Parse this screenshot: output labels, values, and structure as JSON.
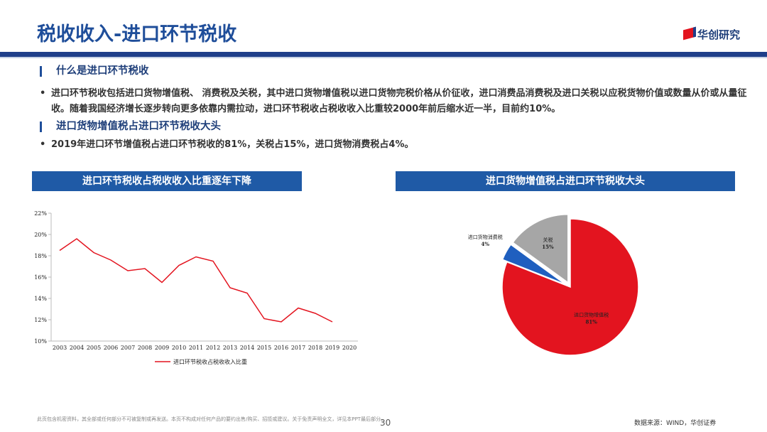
{
  "header": {
    "title": "税收收入-进口环节税收",
    "logo": "华创研究"
  },
  "sections": [
    {
      "heading": "什么是进口环节税收",
      "bullets": [
        "进口环节税收包括进口货物增值税、 消费税及关税，其中进口货物增值税以进口货物完税价格从价征收，进口消费品消费税及进口关税以应税货物价值或数量从价或从量征收。随着我国经济增长逐步转向更多依靠内需拉动，进口环节税收占税收收入比重较2000年前后缩水近一半，目前约10%。"
      ]
    },
    {
      "heading": "进口货物增值税占进口环节税收大头",
      "bullets": [
        "2019年进口环节增值税占进口环节税收的81%，关税占15%，进口货物消费税占4%。"
      ]
    }
  ],
  "chart_data": [
    {
      "type": "line",
      "title": "进口环节税收占税收收入比重逐年下降",
      "categories": [
        "2003",
        "2004",
        "2005",
        "2006",
        "2007",
        "2008",
        "2009",
        "2010",
        "2011",
        "2012",
        "2013",
        "2014",
        "2015",
        "2016",
        "2017",
        "2018",
        "2019",
        "2020"
      ],
      "series": [
        {
          "name": "进口环节税收占税收收入比重",
          "color": "#e3141f",
          "values": [
            18.5,
            19.6,
            18.3,
            17.6,
            16.6,
            16.8,
            15.5,
            17.1,
            17.9,
            17.5,
            15.0,
            14.5,
            12.1,
            11.8,
            13.1,
            12.6,
            11.8,
            null
          ]
        }
      ],
      "ylim": [
        10,
        22
      ],
      "yticks": [
        {
          "value": 10,
          "label": "10%"
        },
        {
          "value": 12,
          "label": "12%"
        },
        {
          "value": 14,
          "label": "14%"
        },
        {
          "value": 16,
          "label": "16%"
        },
        {
          "value": 18,
          "label": "18%"
        },
        {
          "value": 20,
          "label": "20%"
        },
        {
          "value": 22,
          "label": "22%"
        }
      ]
    },
    {
      "type": "pie",
      "title": "进口货物增值税占进口环节税收大头",
      "categories": [
        "进口货物增值税",
        "进口货物消费税",
        "关税"
      ],
      "values": [
        81,
        4,
        15
      ],
      "value_labels": [
        "81%",
        "4%",
        "15%"
      ],
      "colors": [
        "#e3141f",
        "#1f5fbf",
        "#a6a6a6"
      ]
    }
  ],
  "footer": {
    "disclaimer": "此页包含机密资料，其全部或任何部分不可被复制或再发送。本页不构成对任何产品的要约出售/购买、招揽或建议。关于免责声明全文，详见本PPT最后部分。",
    "page": "30",
    "source": "数据来源：WIND，华创证券"
  }
}
